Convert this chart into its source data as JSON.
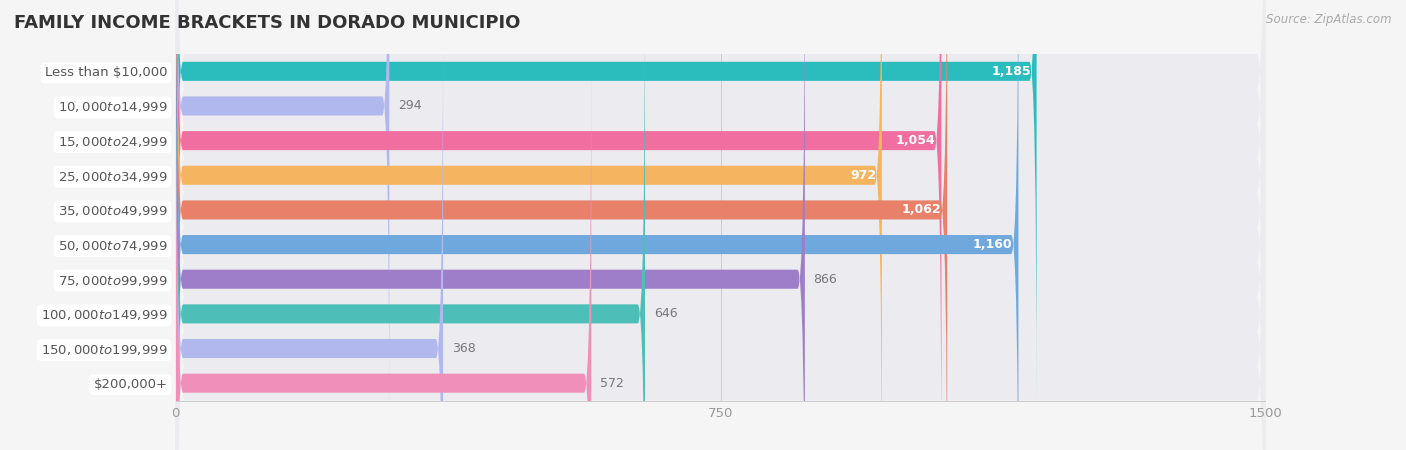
{
  "title": "FAMILY INCOME BRACKETS IN DORADO MUNICIPIO",
  "source": "Source: ZipAtlas.com",
  "categories": [
    "Less than $10,000",
    "$10,000 to $14,999",
    "$15,000 to $24,999",
    "$25,000 to $34,999",
    "$35,000 to $49,999",
    "$50,000 to $74,999",
    "$75,000 to $99,999",
    "$100,000 to $149,999",
    "$150,000 to $199,999",
    "$200,000+"
  ],
  "values": [
    1185,
    294,
    1054,
    972,
    1062,
    1160,
    866,
    646,
    368,
    572
  ],
  "bar_colors": [
    "#2bbdbd",
    "#b0b8ee",
    "#f06fa0",
    "#f5b560",
    "#e8806a",
    "#6fa8dc",
    "#9e7ec8",
    "#4dbfb8",
    "#b0b8ee",
    "#f090b8"
  ],
  "value_inside": [
    true,
    false,
    true,
    true,
    true,
    true,
    false,
    false,
    false,
    false
  ],
  "xlim": [
    0,
    1500
  ],
  "xticks": [
    0,
    750,
    1500
  ],
  "background_color": "#f5f5f5",
  "bar_background_color": "#e0e0e8",
  "bar_row_bg": "#ebebf0",
  "title_fontsize": 13,
  "label_fontsize": 9.5,
  "value_fontsize": 9,
  "bar_height": 0.55
}
